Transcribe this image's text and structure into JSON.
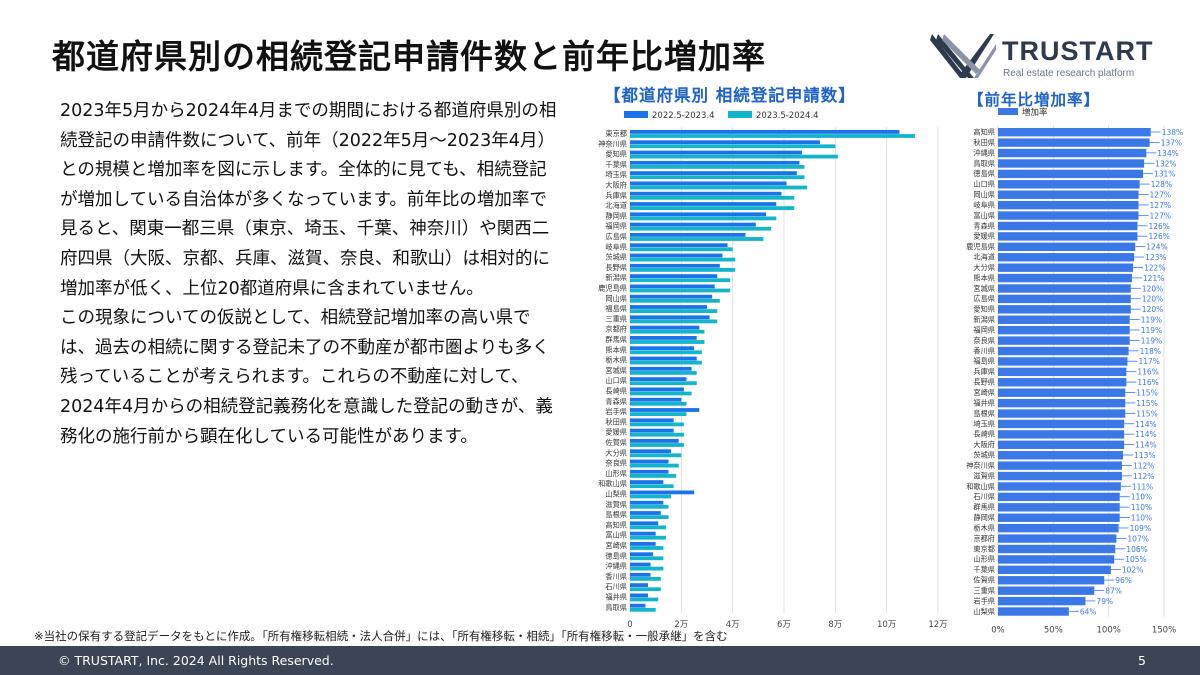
{
  "title": "都道府県別の相続登記申請件数と前年比増加率",
  "logo": {
    "name": "TRUSTART",
    "tagline": "Real estate research platform"
  },
  "body": {
    "paragraph1": "2023年5月から2024年4月までの期間における都道府県別の相続登記の申請件数について、前年（2022年5月～2023年4月）との規模と増加率を図に示します。全体的に見ても、相続登記が増加している自治体が多くなっています。前年比の増加率で見ると、関東一都三県（東京、埼玉、千葉、神奈川）や関西二府四県（大阪、京都、兵庫、滋賀、奈良、和歌山）は相対的に増加率が低く、上位20都道府県に含まれていません。",
    "paragraph2": "この現象についての仮説として、相続登記増加率の高い県では、過去の相続に関する登記未了の不動産が都市圏よりも多く残っていることが考えられます。これらの不動産に対して、2024年4月からの相続登記義務化を意識した登記の動きが、義務化の施行前から顕在化している可能性があります。"
  },
  "footnote": "※当社の保有する登記データをもとに作成。「所有権移転相続・法人合併」には、「所有権移転・相続」「所有権移転・一般承継」を含む",
  "footer": {
    "copyright": "©  TRUSTART, Inc. 2024 All Rights Reserved.",
    "page": "5"
  },
  "colors": {
    "series2022": "#1a73e8",
    "series2023": "#12b5cb",
    "rate": "#3b78e7",
    "title_blue": "#1f63c7",
    "footer_bg": "#3c4556"
  },
  "chart_data": [
    {
      "type": "bar",
      "orientation": "horizontal",
      "title": "【都道府県別  相続登記申請数】",
      "legend_position": "top-left",
      "xlim": [
        0,
        120000
      ],
      "xticks": [
        0,
        20000,
        40000,
        60000,
        80000,
        100000,
        120000
      ],
      "xtick_labels": [
        "0",
        "2万",
        "4万",
        "6万",
        "8万",
        "10万",
        "12万"
      ],
      "grid": true,
      "categories": [
        "東京都",
        "神奈川県",
        "愛知県",
        "千葉県",
        "埼玉県",
        "大阪府",
        "兵庫県",
        "北海道",
        "静岡県",
        "福岡県",
        "広島県",
        "岐阜県",
        "茨城県",
        "長野県",
        "新潟県",
        "鹿児島県",
        "岡山県",
        "福島県",
        "三重県",
        "京都府",
        "群馬県",
        "熊本県",
        "栃木県",
        "宮城県",
        "山口県",
        "長崎県",
        "青森県",
        "岩手県",
        "秋田県",
        "愛媛県",
        "佐賀県",
        "大分県",
        "奈良県",
        "山形県",
        "和歌山県",
        "山梨県",
        "滋賀県",
        "島根県",
        "高知県",
        "富山県",
        "宮崎県",
        "徳島県",
        "沖縄県",
        "香川県",
        "石川県",
        "福井県",
        "鳥取県"
      ],
      "series": [
        {
          "name": "2022.5-2023.4",
          "values": [
            105000,
            74000,
            67000,
            66000,
            65000,
            61000,
            59000,
            57000,
            53000,
            49000,
            45000,
            38000,
            36000,
            35000,
            34000,
            33000,
            32000,
            30000,
            31000,
            27000,
            26000,
            25000,
            26000,
            24000,
            22000,
            21000,
            20000,
            27000,
            17000,
            17000,
            19000,
            16000,
            15000,
            15000,
            13000,
            25000,
            13000,
            12000,
            11000,
            10000,
            10000,
            9000,
            8000,
            8000,
            7000,
            7000,
            6000
          ]
        },
        {
          "name": "2023.5-2024.4",
          "values": [
            111000,
            80000,
            81000,
            68000,
            68000,
            69000,
            64000,
            64000,
            57000,
            55000,
            52000,
            40000,
            41000,
            41000,
            39000,
            39000,
            35000,
            34000,
            34000,
            29000,
            29000,
            28000,
            28000,
            26000,
            26000,
            24000,
            22000,
            22000,
            21000,
            21000,
            21000,
            20000,
            19000,
            18000,
            17000,
            16000,
            15000,
            15000,
            14000,
            14000,
            13000,
            13000,
            13000,
            12000,
            12000,
            11000,
            10000
          ]
        }
      ]
    },
    {
      "type": "bar",
      "orientation": "horizontal",
      "title": "【前年比増加率】",
      "legend_position": "top-left",
      "xlim": [
        0,
        150
      ],
      "xticks": [
        0,
        50,
        100,
        150
      ],
      "xtick_labels": [
        "0%",
        "50%",
        "100%",
        "150%"
      ],
      "grid": true,
      "categories": [
        "高知県",
        "秋田県",
        "沖縄県",
        "鳥取県",
        "徳島県",
        "山口県",
        "岡山県",
        "岐阜県",
        "富山県",
        "青森県",
        "愛媛県",
        "鹿児島県",
        "北海道",
        "大分県",
        "熊本県",
        "宮城県",
        "広島県",
        "愛知県",
        "新潟県",
        "福岡県",
        "奈良県",
        "香川県",
        "福島県",
        "兵庫県",
        "長野県",
        "宮崎県",
        "福井県",
        "島根県",
        "埼玉県",
        "長崎県",
        "大阪府",
        "茨城県",
        "神奈川県",
        "滋賀県",
        "和歌山県",
        "石川県",
        "群馬県",
        "静岡県",
        "栃木県",
        "京都府",
        "東京都",
        "山形県",
        "千葉県",
        "佐賀県",
        "三重県",
        "岩手県",
        "山梨県"
      ],
      "series": [
        {
          "name": "増加率",
          "values": [
            138,
            137,
            134,
            132,
            131,
            128,
            127,
            127,
            127,
            126,
            126,
            124,
            123,
            122,
            121,
            120,
            120,
            120,
            119,
            119,
            119,
            118,
            117,
            116,
            116,
            115,
            115,
            115,
            114,
            114,
            114,
            113,
            112,
            112,
            111,
            110,
            110,
            110,
            109,
            107,
            106,
            105,
            102,
            96,
            87,
            79,
            64
          ],
          "labels": [
            "138%",
            "137%",
            "134%",
            "132%",
            "131%",
            "128%",
            "127%",
            "127%",
            "127%",
            "126%",
            "126%",
            "124%",
            "123%",
            "122%",
            "121%",
            "120%",
            "120%",
            "120%",
            "119%",
            "119%",
            "119%",
            "118%",
            "117%",
            "116%",
            "116%",
            "115%",
            "115%",
            "115%",
            "114%",
            "114%",
            "114%",
            "113%",
            "112%",
            "112%",
            "111%",
            "110%",
            "110%",
            "110%",
            "109%",
            "107%",
            "106%",
            "105%",
            "102%",
            "96%",
            "87%",
            "79%",
            "64%"
          ]
        }
      ]
    }
  ]
}
